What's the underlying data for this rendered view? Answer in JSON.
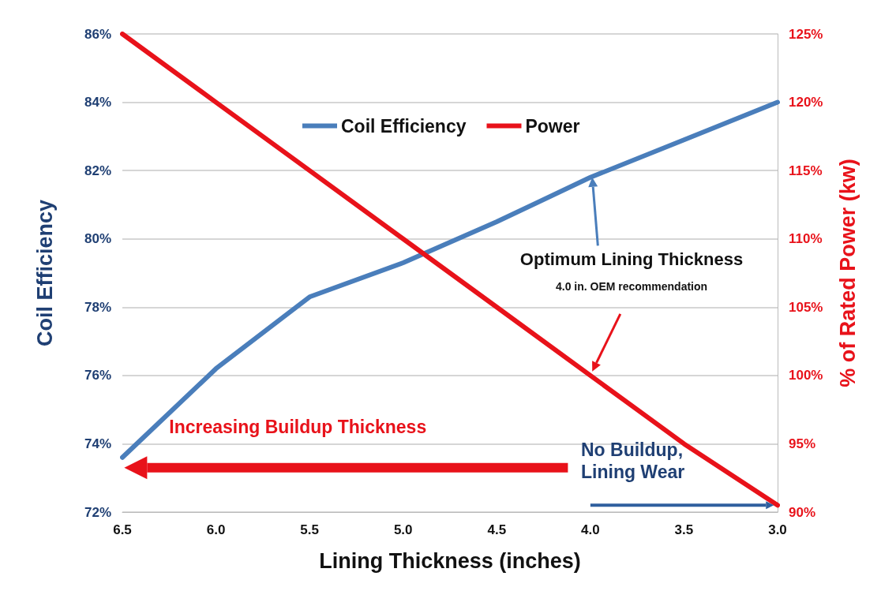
{
  "chart_data": {
    "type": "line",
    "xlabel": "Lining Thickness (inches)",
    "ylabel": "Coil Efficiency",
    "y2label": "% of Rated Power (kw)",
    "x": [
      6.5,
      6.0,
      5.5,
      5.0,
      4.5,
      4.0,
      3.5,
      3.0
    ],
    "series": [
      {
        "name": "Coil Efficiency",
        "color": "#4a7ebb",
        "values": [
          73.6,
          76.2,
          78.3,
          79.3,
          80.5,
          81.8,
          82.9,
          84.0
        ]
      },
      {
        "name": "Power",
        "color": "#e8121a",
        "axis": "y2",
        "values": [
          125,
          120,
          115,
          110,
          105,
          100,
          95,
          90.5
        ]
      }
    ],
    "xlim": [
      6.5,
      3.0
    ],
    "xticks": [
      {
        "value": 6.5,
        "label": "6.5"
      },
      {
        "value": 6,
        "label": "6.0"
      },
      {
        "value": 5.5,
        "label": "5.5"
      },
      {
        "value": 5,
        "label": "5.0"
      },
      {
        "value": 4.5,
        "label": "4.5"
      },
      {
        "value": 4,
        "label": "4.0"
      },
      {
        "value": 3.5,
        "label": "3.5"
      },
      {
        "value": 3,
        "label": "3.0"
      }
    ],
    "ylim": [
      72,
      86
    ],
    "yticks": [
      {
        "value": 72,
        "label": "72%"
      },
      {
        "value": 74,
        "label": "74%"
      },
      {
        "value": 76,
        "label": "76%"
      },
      {
        "value": 78,
        "label": "78%"
      },
      {
        "value": 80,
        "label": "80%"
      },
      {
        "value": 82,
        "label": "82%"
      },
      {
        "value": 84,
        "label": "84%"
      },
      {
        "value": 86,
        "label": "86%"
      }
    ],
    "y2lim": [
      90,
      125
    ],
    "y2ticks": [
      {
        "value": 90,
        "label": "90%"
      },
      {
        "value": 95,
        "label": "95%"
      },
      {
        "value": 100,
        "label": "100%"
      },
      {
        "value": 105,
        "label": "105%"
      },
      {
        "value": 110,
        "label": "110%"
      },
      {
        "value": 115,
        "label": "115%"
      },
      {
        "value": 120,
        "label": "120%"
      },
      {
        "value": 125,
        "label": "125%"
      }
    ],
    "annotations": [
      "Optimum Lining Thickness",
      "4.0 in. OEM recommendation",
      "Increasing Buildup Thickness",
      "No Buildup, Lining Wear"
    ],
    "grid": "y",
    "legend": "top",
    "marker": "none",
    "line_style": "solid"
  }
}
